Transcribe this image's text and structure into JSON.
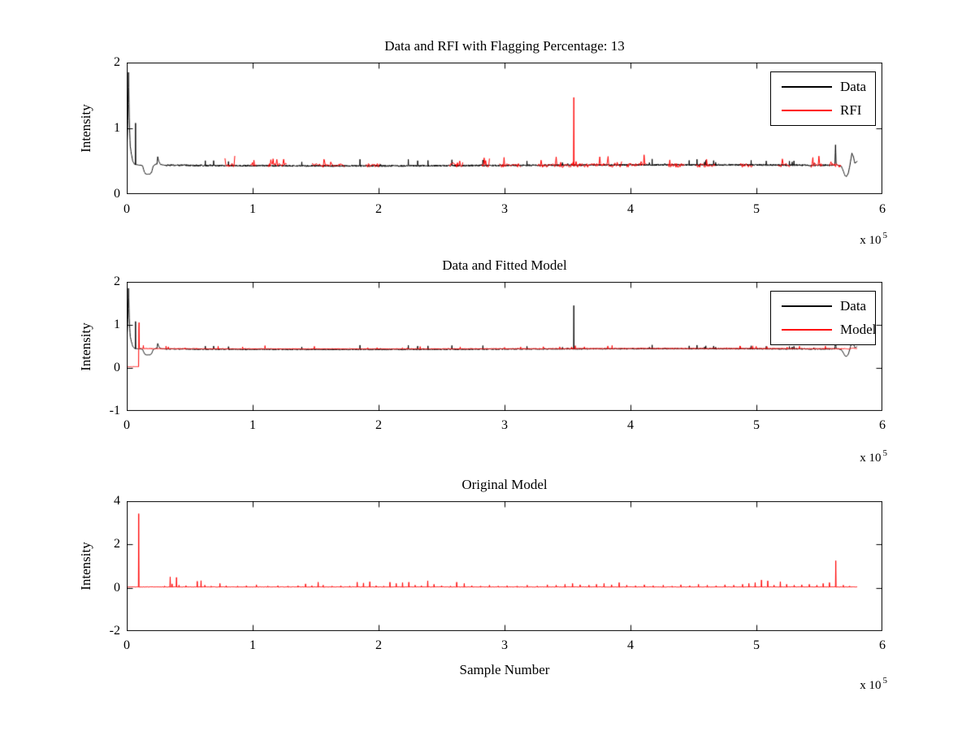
{
  "figure": {
    "background": "#ffffff"
  },
  "chart_data": [
    {
      "type": "line",
      "title": "Data and RFI with Flagging Percentage: 13",
      "ylabel": "Intensity",
      "xlabel": "",
      "ylim": [
        0,
        2
      ],
      "xlim": [
        0,
        600000
      ],
      "grid": false,
      "yticks": [
        [
          0,
          "0"
        ],
        [
          1,
          "1"
        ],
        [
          2,
          "2"
        ]
      ],
      "xticks": [
        [
          0,
          "0"
        ],
        [
          100000,
          "1"
        ],
        [
          200000,
          "2"
        ],
        [
          300000,
          "3"
        ],
        [
          400000,
          "4"
        ],
        [
          500000,
          "5"
        ],
        [
          600000,
          "6"
        ]
      ],
      "x_multiplier": "x 10",
      "x_exponent": "5",
      "legend_position": "top-right",
      "legend": [
        {
          "label": "Data",
          "color": "#000000"
        },
        {
          "label": "RFI",
          "color": "#ff0000"
        }
      ],
      "series": [
        {
          "name": "Data",
          "color": "#000000",
          "kind": "noisy",
          "seed": 42,
          "x_end": 580000,
          "points": 2900,
          "level": 0.437,
          "noise": 0.026,
          "wave_amp": 0.008,
          "wave_cycles": 1.1,
          "wave_phase": 2.6,
          "spike_prob": 0.02,
          "spike_amp": 0.1,
          "head": [
            [
              0,
              0.58
            ],
            [
              700,
              1.0
            ],
            [
              1400,
              1.85
            ],
            [
              2100,
              1.05
            ],
            [
              2800,
              0.73
            ],
            [
              3600,
              0.62
            ],
            [
              4800,
              0.5
            ],
            [
              6200,
              0.455
            ],
            [
              6900,
              0.445
            ],
            [
              7000,
              1.08
            ],
            [
              7150,
              0.45
            ],
            [
              8500,
              0.445
            ],
            [
              12500,
              0.435
            ],
            [
              13800,
              0.345
            ],
            [
              15000,
              0.305
            ],
            [
              18200,
              0.3
            ],
            [
              19800,
              0.335
            ],
            [
              21000,
              0.425
            ],
            [
              22500,
              0.45
            ],
            [
              24000,
              0.46
            ],
            [
              24600,
              0.565
            ],
            [
              25400,
              0.5
            ],
            [
              26800,
              0.452
            ],
            [
              30000,
              0.44
            ]
          ],
          "tail": [
            [
              560000,
              0.44
            ],
            [
              562300,
              0.445
            ],
            [
              562800,
              0.75
            ],
            [
              563300,
              0.45
            ],
            [
              565000,
              0.44
            ],
            [
              567500,
              0.42
            ],
            [
              569000,
              0.35
            ],
            [
              570300,
              0.28
            ],
            [
              571500,
              0.27
            ],
            [
              573000,
              0.32
            ],
            [
              574500,
              0.47
            ],
            [
              575800,
              0.62
            ],
            [
              577000,
              0.57
            ],
            [
              578200,
              0.47
            ],
            [
              579500,
              0.49
            ],
            [
              580000,
              0.5
            ]
          ]
        },
        {
          "name": "RFI",
          "color": "#ff0000",
          "kind": "regions",
          "seed": 7,
          "level": 0.437,
          "noise": 0.06,
          "spike_prob": 0.12,
          "spike_amp": 0.14,
          "step": 600,
          "regions": [
            [
              78000,
              86000
            ],
            [
              98000,
              103000
            ],
            [
              112000,
              127000
            ],
            [
              147000,
              173000
            ],
            [
              190000,
              201000
            ],
            [
              256000,
              267000
            ],
            [
              282000,
              288000
            ],
            [
              296000,
              313000
            ],
            [
              326000,
              352000
            ],
            [
              352000,
              363000
            ],
            [
              363000,
              393000
            ],
            [
              397000,
              413000
            ],
            [
              430000,
              443000
            ],
            [
              452000,
              467000
            ],
            [
              487000,
              497000
            ],
            [
              517000,
              527000
            ],
            [
              543000,
              553000
            ],
            [
              558000,
              567000
            ]
          ],
          "spikes": [
            [
              355000,
              1.47
            ]
          ]
        }
      ]
    },
    {
      "type": "line",
      "title": "Data and Fitted Model",
      "ylabel": "Intensity",
      "xlabel": "",
      "ylim": [
        -1,
        2
      ],
      "xlim": [
        0,
        600000
      ],
      "grid": false,
      "yticks": [
        [
          -1,
          "-1"
        ],
        [
          0,
          "0"
        ],
        [
          1,
          "1"
        ],
        [
          2,
          "2"
        ]
      ],
      "xticks": [
        [
          0,
          "0"
        ],
        [
          100000,
          "1"
        ],
        [
          200000,
          "2"
        ],
        [
          300000,
          "3"
        ],
        [
          400000,
          "4"
        ],
        [
          500000,
          "5"
        ],
        [
          600000,
          "6"
        ]
      ],
      "x_multiplier": "x 10",
      "x_exponent": "5",
      "legend_position": "top-right",
      "legend": [
        {
          "label": "Data",
          "color": "#000000"
        },
        {
          "label": "Model",
          "color": "#ff0000"
        }
      ],
      "series": [
        {
          "name": "Data",
          "color": "#000000",
          "kind": "noisy",
          "seed": 42,
          "x_end": 580000,
          "points": 2900,
          "level": 0.437,
          "noise": 0.026,
          "wave_amp": 0.008,
          "wave_cycles": 1.1,
          "wave_phase": 2.6,
          "spike_prob": 0.02,
          "spike_amp": 0.1,
          "head": [
            [
              0,
              0.58
            ],
            [
              700,
              1.0
            ],
            [
              1400,
              1.85
            ],
            [
              2100,
              1.05
            ],
            [
              2800,
              0.73
            ],
            [
              3600,
              0.62
            ],
            [
              4800,
              0.5
            ],
            [
              6200,
              0.455
            ],
            [
              6900,
              0.445
            ],
            [
              7000,
              1.08
            ],
            [
              7150,
              0.45
            ],
            [
              8500,
              0.445
            ],
            [
              12500,
              0.435
            ],
            [
              13800,
              0.345
            ],
            [
              15000,
              0.305
            ],
            [
              18200,
              0.3
            ],
            [
              19800,
              0.335
            ],
            [
              21000,
              0.425
            ],
            [
              22500,
              0.45
            ],
            [
              24000,
              0.46
            ],
            [
              24600,
              0.565
            ],
            [
              25400,
              0.5
            ],
            [
              26800,
              0.452
            ],
            [
              30000,
              0.44
            ]
          ],
          "tail": [
            [
              560000,
              0.44
            ],
            [
              562300,
              0.445
            ],
            [
              562800,
              0.75
            ],
            [
              563300,
              0.45
            ],
            [
              565000,
              0.44
            ],
            [
              567500,
              0.42
            ],
            [
              569000,
              0.35
            ],
            [
              570300,
              0.28
            ],
            [
              571500,
              0.27
            ],
            [
              573000,
              0.32
            ],
            [
              574500,
              0.47
            ],
            [
              575800,
              0.62
            ],
            [
              577000,
              0.57
            ],
            [
              578200,
              0.47
            ],
            [
              579500,
              0.49
            ],
            [
              580000,
              0.5
            ]
          ],
          "extra_spikes": [
            [
              355000,
              1.45
            ]
          ]
        },
        {
          "name": "Model",
          "color": "#ff0000",
          "kind": "noisy",
          "seed": 99,
          "x_end": 580000,
          "points": 2900,
          "level": 0.448,
          "noise": 0.016,
          "wave_amp": 0.005,
          "wave_cycles": 1.1,
          "wave_phase": 2.6,
          "spike_prob": 0.012,
          "spike_amp": 0.07,
          "head": [
            [
              0,
              0.03
            ],
            [
              3800,
              0.03
            ],
            [
              4200,
              0.015
            ],
            [
              4700,
              0.03
            ],
            [
              9400,
              0.03
            ],
            [
              9700,
              1.35
            ],
            [
              10000,
              0.46
            ],
            [
              11500,
              0.45
            ]
          ],
          "tail": [
            [
              570000,
              0.45
            ],
            [
              573000,
              0.44
            ],
            [
              576000,
              0.46
            ],
            [
              580000,
              0.45
            ]
          ]
        }
      ]
    },
    {
      "type": "line",
      "title": "Original Model",
      "ylabel": "Intensity",
      "xlabel": "Sample Number",
      "ylim": [
        -2,
        4
      ],
      "xlim": [
        0,
        600000
      ],
      "grid": false,
      "yticks": [
        [
          -2,
          "-2"
        ],
        [
          0,
          "0"
        ],
        [
          2,
          "2"
        ],
        [
          4,
          "4"
        ]
      ],
      "xticks": [
        [
          0,
          "0"
        ],
        [
          100000,
          "1"
        ],
        [
          200000,
          "2"
        ],
        [
          300000,
          "3"
        ],
        [
          400000,
          "4"
        ],
        [
          500000,
          "5"
        ],
        [
          600000,
          "6"
        ]
      ],
      "x_multiplier": "x 10",
      "x_exponent": "5",
      "legend": [],
      "series": [
        {
          "name": "Model",
          "color": "#ff0000",
          "kind": "spikes",
          "seed": 5,
          "x_end": 580000,
          "step": 500,
          "level": 0.04,
          "noise": 0.02,
          "spikes": [
            [
              9500,
              3.42
            ],
            [
              30000,
              0.08
            ],
            [
              34500,
              0.5
            ],
            [
              36000,
              0.18
            ],
            [
              39500,
              0.48
            ],
            [
              41500,
              0.12
            ],
            [
              47000,
              0.1
            ],
            [
              56000,
              0.3
            ],
            [
              59000,
              0.33
            ],
            [
              62000,
              0.12
            ],
            [
              67000,
              0.08
            ],
            [
              74000,
              0.2
            ],
            [
              79000,
              0.1
            ],
            [
              88000,
              0.08
            ],
            [
              95000,
              0.1
            ],
            [
              103000,
              0.14
            ],
            [
              112000,
              0.08
            ],
            [
              120000,
              0.1
            ],
            [
              128000,
              0.08
            ],
            [
              136000,
              0.1
            ],
            [
              142000,
              0.18
            ],
            [
              147000,
              0.1
            ],
            [
              152000,
              0.26
            ],
            [
              156000,
              0.12
            ],
            [
              163000,
              0.08
            ],
            [
              170000,
              0.1
            ],
            [
              177000,
              0.08
            ],
            [
              183000,
              0.26
            ],
            [
              188000,
              0.22
            ],
            [
              193000,
              0.28
            ],
            [
              198000,
              0.1
            ],
            [
              204000,
              0.08
            ],
            [
              209000,
              0.26
            ],
            [
              214000,
              0.2
            ],
            [
              219000,
              0.24
            ],
            [
              224000,
              0.26
            ],
            [
              229000,
              0.12
            ],
            [
              234000,
              0.1
            ],
            [
              239000,
              0.32
            ],
            [
              244000,
              0.16
            ],
            [
              250000,
              0.1
            ],
            [
              257000,
              0.08
            ],
            [
              262000,
              0.26
            ],
            [
              268000,
              0.2
            ],
            [
              274000,
              0.1
            ],
            [
              281000,
              0.08
            ],
            [
              288000,
              0.12
            ],
            [
              295000,
              0.08
            ],
            [
              302000,
              0.1
            ],
            [
              310000,
              0.08
            ],
            [
              318000,
              0.12
            ],
            [
              326000,
              0.08
            ],
            [
              334000,
              0.14
            ],
            [
              341000,
              0.12
            ],
            [
              348000,
              0.16
            ],
            [
              354000,
              0.2
            ],
            [
              360000,
              0.14
            ],
            [
              367000,
              0.12
            ],
            [
              373000,
              0.16
            ],
            [
              379000,
              0.2
            ],
            [
              385000,
              0.14
            ],
            [
              391000,
              0.24
            ],
            [
              397000,
              0.12
            ],
            [
              404000,
              0.1
            ],
            [
              411000,
              0.14
            ],
            [
              418000,
              0.1
            ],
            [
              426000,
              0.12
            ],
            [
              433000,
              0.08
            ],
            [
              440000,
              0.14
            ],
            [
              447000,
              0.1
            ],
            [
              454000,
              0.16
            ],
            [
              461000,
              0.12
            ],
            [
              468000,
              0.1
            ],
            [
              475000,
              0.14
            ],
            [
              482000,
              0.12
            ],
            [
              489000,
              0.16
            ],
            [
              494000,
              0.2
            ],
            [
              499000,
              0.24
            ],
            [
              504000,
              0.36
            ],
            [
              509000,
              0.32
            ],
            [
              514000,
              0.12
            ],
            [
              519000,
              0.28
            ],
            [
              524000,
              0.16
            ],
            [
              530000,
              0.12
            ],
            [
              536000,
              0.14
            ],
            [
              542000,
              0.16
            ],
            [
              548000,
              0.12
            ],
            [
              553000,
              0.2
            ],
            [
              558000,
              0.24
            ],
            [
              563000,
              1.25
            ],
            [
              569000,
              0.12
            ],
            [
              574000,
              0.08
            ]
          ]
        }
      ]
    }
  ]
}
